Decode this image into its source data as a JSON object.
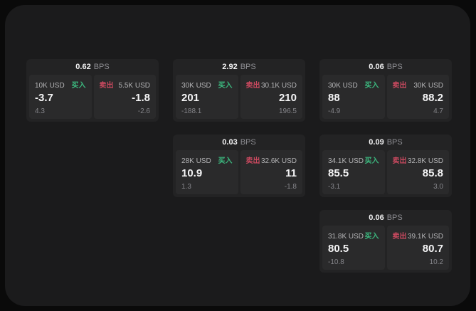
{
  "labels": {
    "bps_unit": "BPS",
    "buy": "买入",
    "sell": "卖出"
  },
  "colors": {
    "buy_green": "#3cb87f",
    "sell_red": "#c9495f",
    "panel_bg": "#1b1b1c",
    "card_bg": "#232324",
    "tile_bg": "#2a2a2b"
  },
  "cards": [
    {
      "bps": "0.62",
      "col": 1,
      "row": 1,
      "buy": {
        "amount": "10K USD",
        "value": "-3.7",
        "sub": "4.3"
      },
      "sell": {
        "amount": "5.5K USD",
        "value": "-1.8",
        "sub": "-2.6"
      }
    },
    {
      "bps": "2.92",
      "col": 2,
      "row": 1,
      "buy": {
        "amount": "30K USD",
        "value": "201",
        "sub": "-188.1"
      },
      "sell": {
        "amount": "30.1K USD",
        "value": "210",
        "sub": "196.5"
      }
    },
    {
      "bps": "0.06",
      "col": 3,
      "row": 1,
      "buy": {
        "amount": "30K USD",
        "value": "88",
        "sub": "-4.9"
      },
      "sell": {
        "amount": "30K USD",
        "value": "88.2",
        "sub": "4.7"
      }
    },
    {
      "bps": "0.03",
      "col": 2,
      "row": 2,
      "buy": {
        "amount": "28K USD",
        "value": "10.9",
        "sub": "1.3"
      },
      "sell": {
        "amount": "32.6K USD",
        "value": "11",
        "sub": "-1.8"
      }
    },
    {
      "bps": "0.09",
      "col": 3,
      "row": 2,
      "buy": {
        "amount": "34.1K USD",
        "value": "85.5",
        "sub": "-3.1"
      },
      "sell": {
        "amount": "32.8K USD",
        "value": "85.8",
        "sub": "3.0"
      }
    },
    {
      "bps": "0.06",
      "col": 3,
      "row": 3,
      "buy": {
        "amount": "31.8K USD",
        "value": "80.5",
        "sub": "-10.8"
      },
      "sell": {
        "amount": "39.1K USD",
        "value": "80.7",
        "sub": "10.2"
      }
    }
  ]
}
